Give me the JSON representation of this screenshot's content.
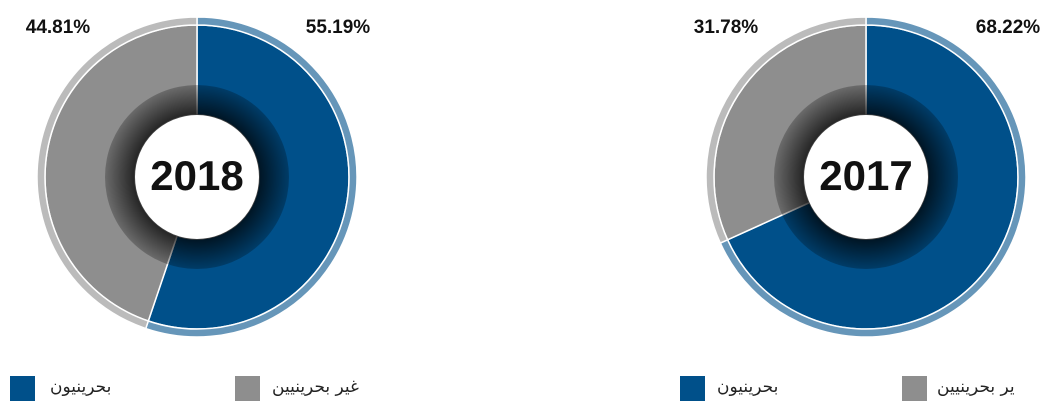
{
  "chart_data": [
    {
      "type": "pie",
      "title": "2018",
      "categories": [
        "بحرينيون",
        "غير بحرينيين"
      ],
      "values": [
        55.19,
        44.81
      ],
      "value_labels": [
        "55.19%",
        "44.81%"
      ],
      "colors": [
        "#00508a",
        "#8e8e8e"
      ]
    },
    {
      "type": "pie",
      "title": "2017",
      "categories": [
        "بحرينيون",
        "ير بحرينيين"
      ],
      "values": [
        68.22,
        31.78
      ],
      "value_labels": [
        "68.22%",
        "31.78%"
      ],
      "colors": [
        "#00508a",
        "#8e8e8e"
      ]
    }
  ]
}
